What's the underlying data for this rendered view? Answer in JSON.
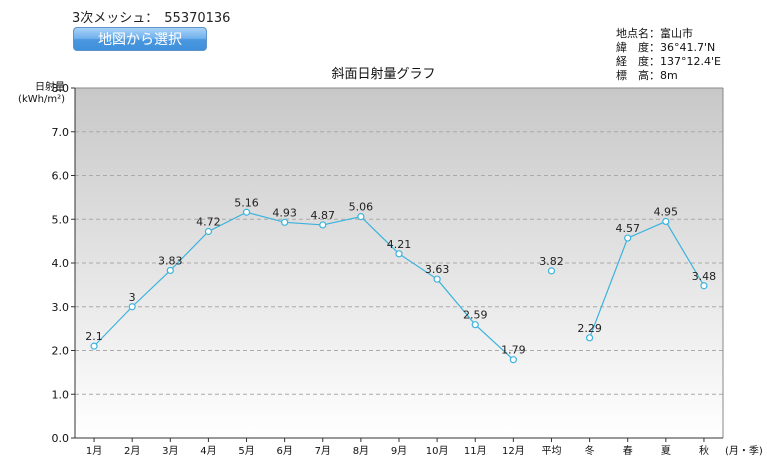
{
  "header": {
    "mesh_label": "3次メッシュ：",
    "mesh_code": "55370136",
    "map_button_label": "地図から選択"
  },
  "site": {
    "rows": [
      {
        "label": "地点名：",
        "value": "富山市"
      },
      {
        "label": "緯　度：",
        "value": "36°41.7'N"
      },
      {
        "label": "経　度：",
        "value": "137°12.4'E"
      },
      {
        "label": "標　高：",
        "value": "8m"
      }
    ]
  },
  "chart_data": {
    "type": "line",
    "title": "斜面日射量グラフ",
    "ylabel": "日射量",
    "yunit": "(kWh/m²)",
    "xlabel": "(月・季)",
    "categories": [
      "1月",
      "2月",
      "3月",
      "4月",
      "5月",
      "6月",
      "7月",
      "8月",
      "9月",
      "10月",
      "11月",
      "12月",
      "平均",
      "冬",
      "春",
      "夏",
      "秋"
    ],
    "values": [
      2.1,
      3,
      3.83,
      4.72,
      5.16,
      4.93,
      4.87,
      5.06,
      4.21,
      3.63,
      2.59,
      1.79,
      3.82,
      2.29,
      4.57,
      4.95,
      3.48
    ],
    "value_labels": [
      "2.1",
      "3",
      "3.83",
      "4.72",
      "5.16",
      "4.93",
      "4.87",
      "5.06",
      "4.21",
      "3.63",
      "2.59",
      "1.79",
      "3.82",
      "2.29",
      "4.57",
      "4.95",
      "3.48"
    ],
    "line_segments": [
      [
        0,
        11
      ],
      [
        13,
        16
      ]
    ],
    "ylim": [
      0,
      8
    ],
    "yticks": [
      "0.0",
      "1.0",
      "2.0",
      "3.0",
      "4.0",
      "5.0",
      "6.0",
      "7.0",
      "8.0"
    ],
    "grid": true,
    "colors": {
      "line": "#3bb3dd",
      "marker": "#3bb3dd",
      "bg_top": "#c8c8c8",
      "bg_bottom": "#ffffff",
      "grid": "#aaaaaa"
    }
  }
}
